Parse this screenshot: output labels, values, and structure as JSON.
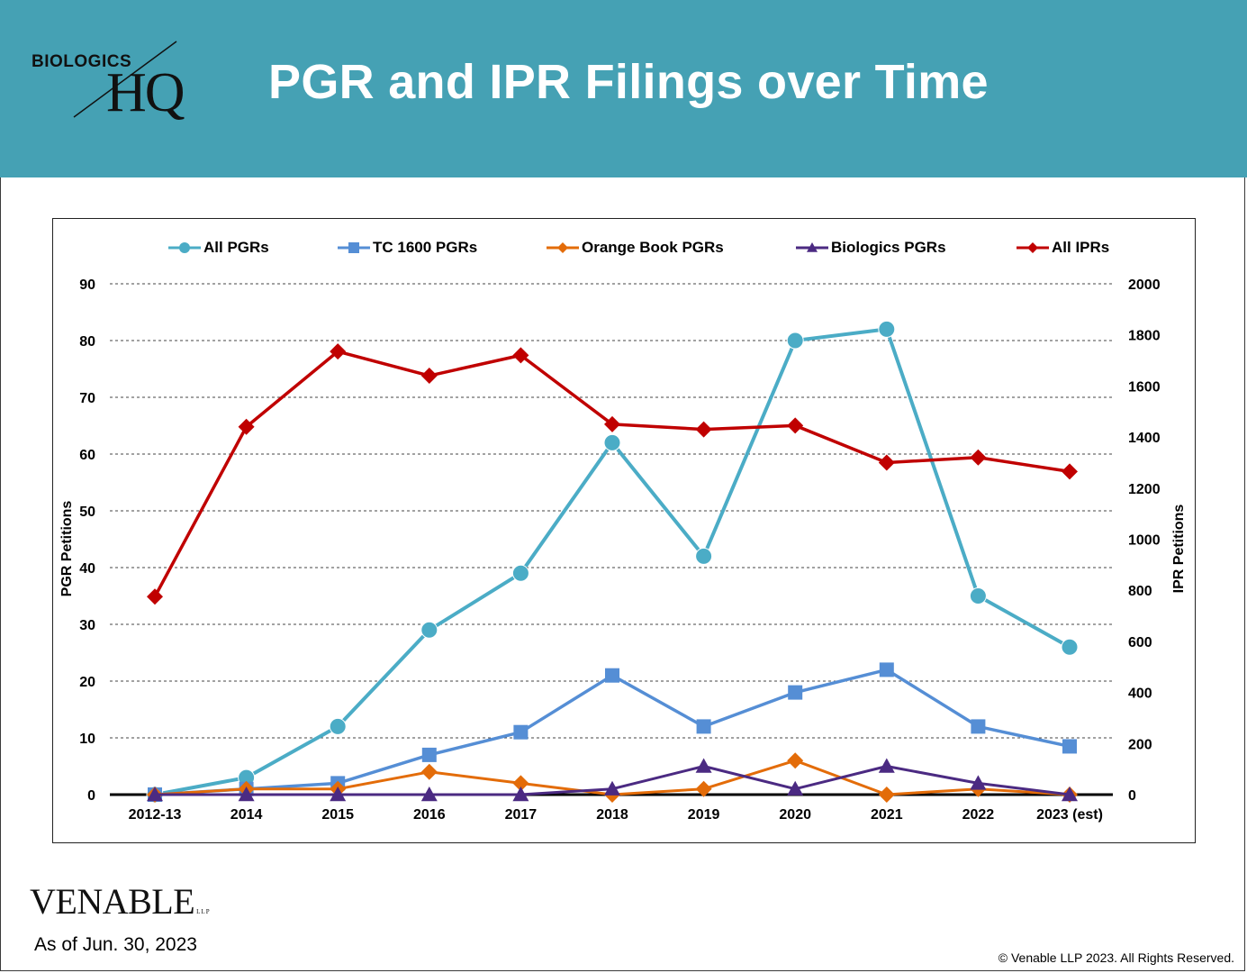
{
  "header": {
    "bg_color": "#45a1b4",
    "logo_top": "BIOLOGICS",
    "logo_bottom": "HQ",
    "title": "PGR and IPR Filings over Time"
  },
  "footer": {
    "brand": "VENABLE",
    "brand_suffix": "LLP",
    "as_of": "As of Jun. 30, 2023",
    "copyright": "© Venable LLP 2023. All Rights Reserved."
  },
  "chart_data": {
    "type": "line",
    "title": "",
    "legend_position": "top",
    "grid": true,
    "categories": [
      "2012-13",
      "2014",
      "2015",
      "2016",
      "2017",
      "2018",
      "2019",
      "2020",
      "2021",
      "2022",
      "2023 (est)"
    ],
    "y_left": {
      "label": "PGR Petitions",
      "min": 0,
      "max": 90,
      "ticks": [
        0,
        10,
        20,
        30,
        40,
        50,
        60,
        70,
        80,
        90
      ]
    },
    "y_right": {
      "label": "IPR Petitions",
      "min": 0,
      "max": 2000,
      "ticks": [
        0,
        200,
        400,
        600,
        800,
        1000,
        1200,
        1400,
        1600,
        1800,
        2000
      ]
    },
    "series": [
      {
        "name": "All PGRs",
        "axis": "left",
        "color": "#4bacc6",
        "marker": "circle",
        "values": [
          0,
          3,
          12,
          29,
          39,
          62,
          42,
          80,
          82,
          35,
          26
        ]
      },
      {
        "name": "TC 1600 PGRs",
        "axis": "left",
        "color": "#558ed5",
        "marker": "square",
        "values": [
          0,
          1,
          2,
          7,
          11,
          21,
          12,
          18,
          22,
          12,
          8.5
        ]
      },
      {
        "name": "Orange Book PGRs",
        "axis": "left",
        "color": "#e36c09",
        "marker": "diamond",
        "values": [
          0,
          1,
          1,
          4,
          2,
          0,
          1,
          6,
          0,
          1,
          0
        ]
      },
      {
        "name": "Biologics PGRs",
        "axis": "left",
        "color": "#4b2a82",
        "marker": "triangle",
        "values": [
          0,
          0,
          0,
          0,
          0,
          1,
          5,
          1,
          5,
          2,
          0
        ]
      },
      {
        "name": "All IPRs",
        "axis": "right",
        "color": "#c00000",
        "marker": "diamond",
        "values": [
          775,
          1440,
          1735,
          1640,
          1720,
          1450,
          1430,
          1445,
          1300,
          1320,
          1265
        ]
      }
    ]
  }
}
